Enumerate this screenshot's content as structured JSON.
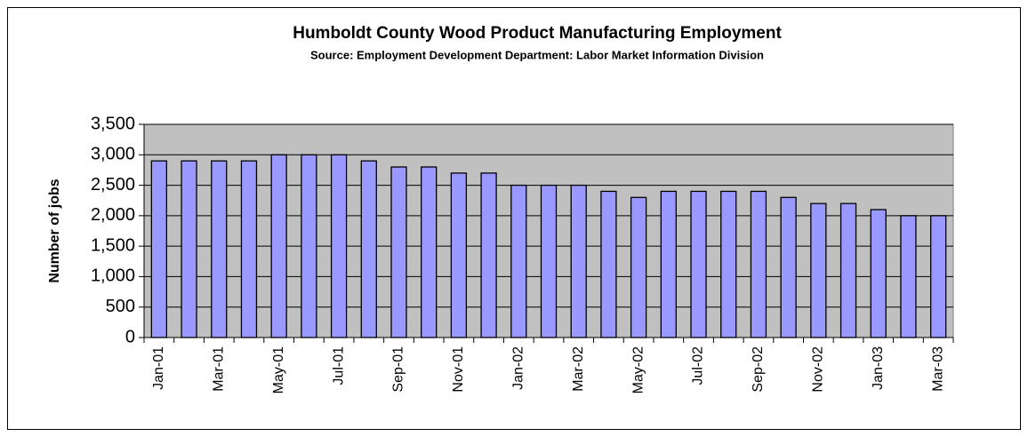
{
  "chart_data": {
    "type": "bar",
    "title": "Humboldt County Wood Product Manufacturing Employment",
    "subtitle": "Source: Employment Development Department: Labor Market Information Division",
    "y_label": "Number of jobs",
    "categories": [
      "Jan-01",
      null,
      "Mar-01",
      null,
      "May-01",
      null,
      "Jul-01",
      null,
      "Sep-01",
      null,
      "Nov-01",
      null,
      "Jan-02",
      null,
      "Mar-02",
      null,
      "May-02",
      null,
      "Jul-02",
      null,
      "Sep-02",
      null,
      "Nov-02",
      null,
      "Jan-03",
      null,
      "Mar-03"
    ],
    "values": [
      2900,
      2900,
      2900,
      2900,
      3000,
      3000,
      3000,
      2900,
      2800,
      2800,
      2700,
      2700,
      2500,
      2500,
      2500,
      2400,
      2300,
      2400,
      2400,
      2400,
      2400,
      2300,
      2200,
      2200,
      2100,
      2000,
      2000
    ],
    "color": "#9999ff",
    "ylim": [
      0,
      3500
    ],
    "yticks": [
      0,
      500,
      {
        "value": 1000,
        "label": "1,000"
      },
      {
        "value": 1500,
        "label": "1,500"
      },
      {
        "value": 2000,
        "label": "2,000"
      },
      {
        "value": 2500,
        "label": "2,500"
      },
      {
        "value": 3000,
        "label": "3,000"
      },
      {
        "value": 3500,
        "label": "3,500"
      }
    ],
    "grid": true
  }
}
